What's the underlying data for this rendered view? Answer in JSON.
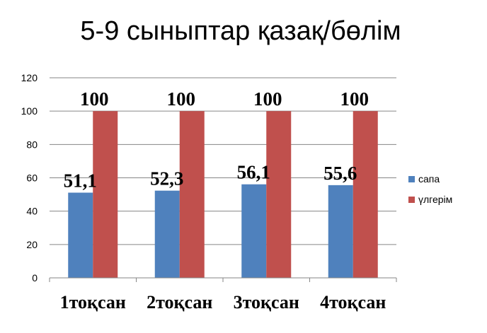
{
  "chart_data": {
    "type": "bar",
    "title": "5-9 сыныптар қазақ/бөлім",
    "categories": [
      "1тоқсан",
      "2тоқсан",
      "3тоқсан",
      "4тоқсан"
    ],
    "series": [
      {
        "name": "сапа",
        "values": [
          51.1,
          52.3,
          56.1,
          55.6
        ],
        "labels": [
          "51,1",
          "52,3",
          "56,1",
          "55,6"
        ],
        "color": "#4F81BD"
      },
      {
        "name": "үлгерім",
        "values": [
          100,
          100,
          100,
          100
        ],
        "labels": [
          "100",
          "100",
          "100",
          "100"
        ],
        "color": "#C0504D"
      }
    ],
    "ylim": [
      0,
      120
    ],
    "yticks": [
      0,
      20,
      40,
      60,
      80,
      100,
      120
    ],
    "grid": true,
    "legend": "right"
  }
}
